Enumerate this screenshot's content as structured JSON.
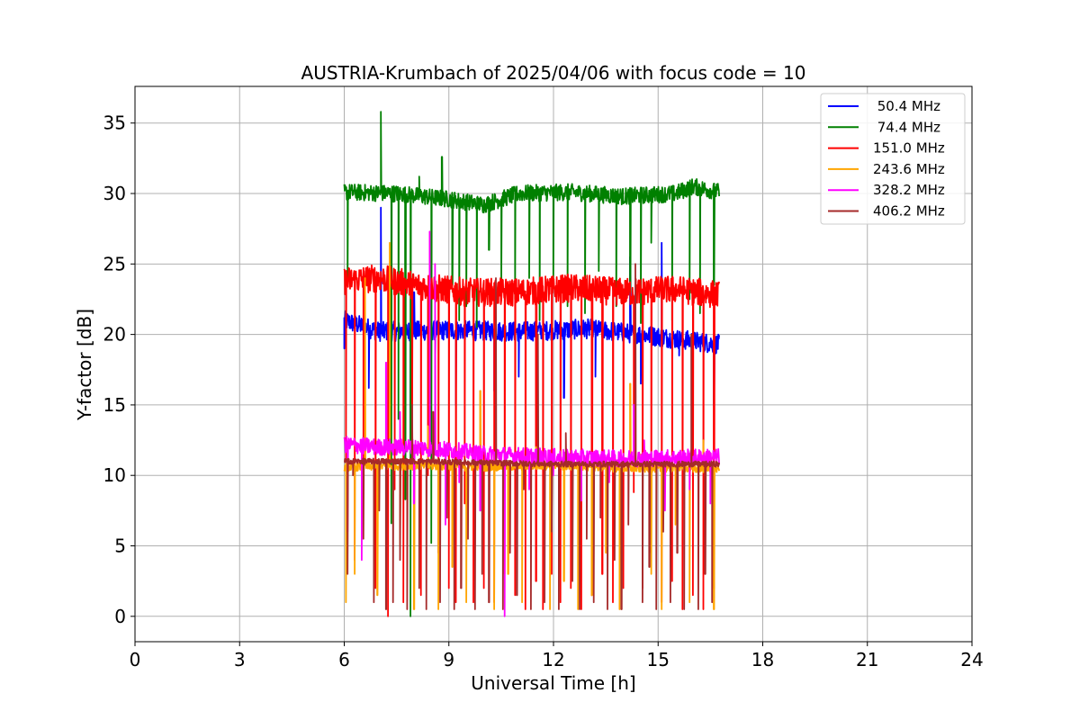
{
  "chart_data": {
    "type": "line",
    "title": "AUSTRIA-Krumbach of 2025/04/06 with focus code = 10",
    "xlabel": "Universal Time [h]",
    "ylabel": "Y-factor [dB]",
    "xlim": [
      0,
      24
    ],
    "ylim": [
      -1.8,
      37.6
    ],
    "xticks": [
      0,
      3,
      6,
      9,
      12,
      15,
      18,
      21,
      24
    ],
    "yticks": [
      0,
      5,
      10,
      15,
      20,
      25,
      30,
      35
    ],
    "grid": true,
    "legend_position": "top-right",
    "time_range": [
      6.0,
      16.75
    ],
    "series": [
      {
        "name": " 50.4 MHz",
        "color": "#0000ff",
        "baseline": [
          [
            6.0,
            21.0
          ],
          [
            7.0,
            20.2
          ],
          [
            9.0,
            20.3
          ],
          [
            11.0,
            20.2
          ],
          [
            13.0,
            20.4
          ],
          [
            14.5,
            20.0
          ],
          [
            16.75,
            19.3
          ]
        ],
        "noise": 0.7,
        "spikes": [
          [
            6.0,
            19.0
          ],
          [
            6.7,
            16.2
          ],
          [
            7.05,
            29.0
          ],
          [
            7.9,
            12.0
          ],
          [
            8.0,
            23.0
          ],
          [
            8.6,
            17.5
          ],
          [
            9.2,
            15.0
          ],
          [
            10.3,
            16.0
          ],
          [
            11.0,
            17.0
          ],
          [
            12.3,
            15.5
          ],
          [
            13.2,
            17.0
          ],
          [
            14.2,
            25.5
          ],
          [
            14.5,
            16.5
          ],
          [
            15.1,
            26.5
          ],
          [
            15.6,
            18.5
          ],
          [
            16.6,
            15.0
          ]
        ]
      },
      {
        "name": " 74.4 MHz",
        "color": "#008000",
        "baseline": [
          [
            6.0,
            30.1
          ],
          [
            7.5,
            30.0
          ],
          [
            9.0,
            29.6
          ],
          [
            10.0,
            29.2
          ],
          [
            11.0,
            30.0
          ],
          [
            12.5,
            30.1
          ],
          [
            14.0,
            29.8
          ],
          [
            15.5,
            30.0
          ],
          [
            16.0,
            30.5
          ],
          [
            16.75,
            30.1
          ]
        ],
        "noise": 0.6,
        "spikes": [
          [
            6.1,
            23.5
          ],
          [
            7.05,
            35.8
          ],
          [
            7.35,
            6.6
          ],
          [
            7.55,
            14.0
          ],
          [
            7.75,
            8.3
          ],
          [
            7.9,
            0.0
          ],
          [
            8.15,
            31.2
          ],
          [
            8.5,
            5.2
          ],
          [
            8.8,
            32.6
          ],
          [
            9.1,
            23.5
          ],
          [
            9.3,
            21.0
          ],
          [
            9.5,
            22.0
          ],
          [
            9.8,
            20.5
          ],
          [
            10.15,
            26.0
          ],
          [
            10.5,
            23.5
          ],
          [
            10.9,
            22.5
          ],
          [
            11.3,
            24.0
          ],
          [
            11.6,
            21.0
          ],
          [
            12.0,
            23.5
          ],
          [
            12.4,
            22.0
          ],
          [
            12.9,
            21.5
          ],
          [
            13.3,
            24.5
          ],
          [
            13.8,
            22.0
          ],
          [
            14.2,
            23.0
          ],
          [
            14.5,
            20.8
          ],
          [
            14.8,
            26.5
          ],
          [
            15.4,
            21.0
          ],
          [
            15.9,
            22.5
          ],
          [
            16.2,
            21.5
          ],
          [
            16.6,
            23.5
          ]
        ]
      },
      {
        "name": "151.0 MHz",
        "color": "#ff0000",
        "baseline": [
          [
            6.0,
            23.8
          ],
          [
            7.0,
            24.0
          ],
          [
            8.0,
            23.5
          ],
          [
            9.5,
            23.0
          ],
          [
            11.0,
            23.0
          ],
          [
            12.5,
            23.3
          ],
          [
            14.0,
            23.0
          ],
          [
            15.5,
            23.2
          ],
          [
            16.75,
            22.8
          ]
        ],
        "noise": 1.0,
        "spikes": [
          [
            6.05,
            11.0
          ],
          [
            6.3,
            4.0
          ],
          [
            6.55,
            10.0
          ],
          [
            6.9,
            2.0
          ],
          [
            7.25,
            0.0
          ],
          [
            7.45,
            9.0
          ],
          [
            7.7,
            1.0
          ],
          [
            7.95,
            12.0
          ],
          [
            8.2,
            1.5
          ],
          [
            8.4,
            10.0
          ],
          [
            8.7,
            4.5
          ],
          [
            9.0,
            2.0
          ],
          [
            9.2,
            1.0
          ],
          [
            9.45,
            8.0
          ],
          [
            9.7,
            1.0
          ],
          [
            10.0,
            2.0
          ],
          [
            10.3,
            1.0
          ],
          [
            10.6,
            3.0
          ],
          [
            10.9,
            1.5
          ],
          [
            11.2,
            0.5
          ],
          [
            11.5,
            2.5
          ],
          [
            11.7,
            0.5
          ],
          [
            11.95,
            3.0
          ],
          [
            12.2,
            1.0
          ],
          [
            12.5,
            2.0
          ],
          [
            12.8,
            0.5
          ],
          [
            13.1,
            1.5
          ],
          [
            13.4,
            3.0
          ],
          [
            13.7,
            1.0
          ],
          [
            14.0,
            2.0
          ],
          [
            14.3,
            8.8
          ],
          [
            14.55,
            2.0
          ],
          [
            14.8,
            4.5
          ],
          [
            15.1,
            1.0
          ],
          [
            15.4,
            2.5
          ],
          [
            15.7,
            0.5
          ],
          [
            16.0,
            1.5
          ],
          [
            16.3,
            0.5
          ],
          [
            16.6,
            2.0
          ]
        ]
      },
      {
        "name": "243.6 MHz",
        "color": "#ffa500",
        "baseline": [
          [
            6.0,
            10.6
          ],
          [
            8.0,
            10.7
          ],
          [
            10.0,
            10.6
          ],
          [
            12.0,
            10.7
          ],
          [
            14.0,
            10.5
          ],
          [
            16.75,
            10.5
          ]
        ],
        "noise": 0.3,
        "spikes": [
          [
            6.05,
            1.0
          ],
          [
            6.3,
            3.0
          ],
          [
            6.6,
            24.0
          ],
          [
            6.95,
            1.5
          ],
          [
            7.3,
            26.5
          ],
          [
            7.6,
            5.0
          ],
          [
            8.0,
            0.5
          ],
          [
            8.4,
            13.5
          ],
          [
            8.7,
            0.5
          ],
          [
            9.1,
            3.5
          ],
          [
            9.5,
            1.0
          ],
          [
            9.9,
            16.0
          ],
          [
            10.3,
            0.5
          ],
          [
            10.7,
            3.0
          ],
          [
            11.1,
            1.0
          ],
          [
            11.5,
            12.0
          ],
          [
            11.9,
            0.5
          ],
          [
            12.3,
            2.5
          ],
          [
            12.7,
            0.5
          ],
          [
            13.1,
            1.5
          ],
          [
            13.5,
            4.5
          ],
          [
            13.9,
            0.5
          ],
          [
            14.2,
            16.5
          ],
          [
            14.5,
            11.5
          ],
          [
            14.8,
            3.0
          ],
          [
            15.1,
            0.5
          ],
          [
            15.5,
            6.5
          ],
          [
            15.9,
            1.0
          ],
          [
            16.3,
            12.5
          ],
          [
            16.6,
            0.5
          ]
        ]
      },
      {
        "name": "328.2 MHz",
        "color": "#ff00ff",
        "baseline": [
          [
            6.0,
            12.2
          ],
          [
            7.0,
            12.0
          ],
          [
            8.0,
            12.0
          ],
          [
            9.0,
            11.8
          ],
          [
            10.0,
            11.5
          ],
          [
            12.0,
            11.3
          ],
          [
            14.0,
            11.2
          ],
          [
            16.75,
            11.3
          ]
        ],
        "noise": 0.6,
        "spikes": [
          [
            6.1,
            6.0
          ],
          [
            6.5,
            4.0
          ],
          [
            7.2,
            18.0
          ],
          [
            7.6,
            14.5
          ],
          [
            8.0,
            8.0
          ],
          [
            8.45,
            27.3
          ],
          [
            8.6,
            25.0
          ],
          [
            8.9,
            6.5
          ],
          [
            9.3,
            9.5
          ],
          [
            9.9,
            7.5
          ],
          [
            10.6,
            0.0
          ],
          [
            11.3,
            9.0
          ],
          [
            12.0,
            10.0
          ],
          [
            12.8,
            8.2
          ],
          [
            13.6,
            9.5
          ],
          [
            14.3,
            15.0
          ],
          [
            14.6,
            12.5
          ],
          [
            15.2,
            7.5
          ],
          [
            15.9,
            9.0
          ],
          [
            16.5,
            8.0
          ]
        ]
      },
      {
        "name": "406.2 MHz",
        "color": "#a52a2a",
        "baseline": [
          [
            6.0,
            11.0
          ],
          [
            8.0,
            11.0
          ],
          [
            10.0,
            10.9
          ],
          [
            12.0,
            10.8
          ],
          [
            14.0,
            10.8
          ],
          [
            16.75,
            10.8
          ]
        ],
        "noise": 0.2,
        "spikes": [
          [
            6.1,
            3.0
          ],
          [
            6.25,
            10.0
          ],
          [
            6.55,
            5.5
          ],
          [
            6.85,
            1.0
          ],
          [
            7.0,
            7.5
          ],
          [
            7.2,
            0.5
          ],
          [
            7.4,
            1.0
          ],
          [
            7.6,
            4.0
          ],
          [
            7.8,
            0.5
          ],
          [
            7.95,
            15.0
          ],
          [
            8.15,
            2.0
          ],
          [
            8.35,
            0.5
          ],
          [
            8.55,
            14.5
          ],
          [
            8.75,
            1.0
          ],
          [
            8.95,
            7.0
          ],
          [
            9.15,
            0.5
          ],
          [
            9.35,
            2.0
          ],
          [
            9.55,
            5.5
          ],
          [
            9.75,
            0.5
          ],
          [
            9.95,
            3.0
          ],
          [
            10.15,
            1.0
          ],
          [
            10.35,
            24.0
          ],
          [
            10.55,
            0.5
          ],
          [
            10.75,
            4.5
          ],
          [
            10.95,
            1.5
          ],
          [
            11.15,
            9.0
          ],
          [
            11.35,
            0.5
          ],
          [
            11.55,
            20.0
          ],
          [
            11.75,
            1.0
          ],
          [
            11.95,
            6.0
          ],
          [
            12.15,
            0.5
          ],
          [
            12.35,
            13.0
          ],
          [
            12.55,
            2.5
          ],
          [
            12.75,
            0.5
          ],
          [
            12.95,
            5.5
          ],
          [
            13.15,
            1.0
          ],
          [
            13.35,
            7.0
          ],
          [
            13.55,
            0.5
          ],
          [
            13.75,
            4.0
          ],
          [
            13.95,
            0.5
          ],
          [
            14.15,
            6.5
          ],
          [
            14.35,
            25.0
          ],
          [
            14.55,
            1.0
          ],
          [
            14.75,
            3.5
          ],
          [
            14.95,
            0.5
          ],
          [
            15.15,
            6.0
          ],
          [
            15.35,
            1.0
          ],
          [
            15.55,
            4.5
          ],
          [
            15.75,
            0.5
          ],
          [
            15.95,
            20.0
          ],
          [
            16.15,
            0.5
          ],
          [
            16.35,
            3.0
          ],
          [
            16.55,
            1.0
          ]
        ]
      }
    ]
  }
}
